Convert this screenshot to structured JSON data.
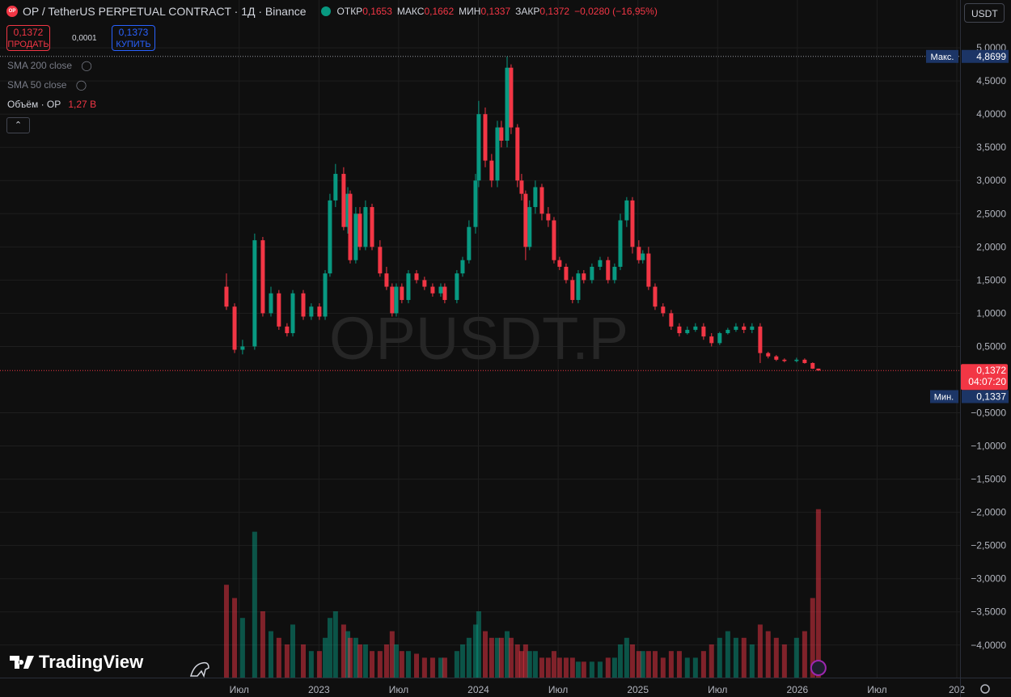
{
  "ui": {
    "symbol": "OP / TetherUS PERPETUAL CONTRACT · 1Д · Binance",
    "logo_text": "OP",
    "ohlc": [
      {
        "label": "ОТКР",
        "value": "0,1653"
      },
      {
        "label": "МАКС",
        "value": "0,1662"
      },
      {
        "label": "МИН",
        "value": "0,1337"
      },
      {
        "label": "ЗАКР",
        "value": "0,1372"
      }
    ],
    "change": "−0,0280 (−16,95%)",
    "sell": {
      "price": "0,1372",
      "label": "ПРОДАТЬ"
    },
    "spread": "0,0001",
    "buy": {
      "price": "0,1373",
      "label": "КУПИТЬ"
    },
    "currency": "USDT",
    "indicators": [
      "SMA 200 close",
      "SMA 50 close"
    ],
    "brand": "TradingView"
  },
  "chart_data": {
    "type": "candlestick",
    "watermark": "OPUSDT.P",
    "colors": {
      "up": "#089981",
      "down": "#f23645"
    },
    "grid": true,
    "x": [
      2022.42,
      2022.471,
      2022.521,
      2022.597,
      2022.648,
      2022.699,
      2022.749,
      2022.8,
      2022.836,
      2022.902,
      2022.952,
      2023.003,
      2023.039,
      2023.069,
      2023.104,
      2023.155,
      2023.181,
      2023.196,
      2023.231,
      2023.257,
      2023.292,
      2023.333,
      2023.383,
      2023.424,
      2023.459,
      2023.485,
      2023.52,
      2023.561,
      2023.612,
      2023.662,
      2023.713,
      2023.764,
      2023.789,
      2023.865,
      2023.901,
      2023.941,
      2023.982,
      2024.002,
      2024.043,
      2024.083,
      2024.119,
      2024.144,
      2024.18,
      2024.205,
      2024.245,
      2024.271,
      2024.296,
      2024.321,
      2024.357,
      2024.398,
      2024.438,
      2024.474,
      2024.509,
      2024.55,
      2024.59,
      2024.626,
      2024.661,
      2024.712,
      2024.763,
      2024.813,
      2024.854,
      2024.89,
      2024.93,
      2024.966,
      2025.006,
      2025.031,
      2025.067,
      2025.108,
      2025.158,
      2025.209,
      2025.26,
      2025.31,
      2025.361,
      2025.412,
      2025.462,
      2025.513,
      2025.564,
      2025.615,
      2025.665,
      2025.716,
      2025.767,
      2025.817,
      2025.868,
      2025.919,
      2025.995,
      2026.046,
      2026.096,
      2026.132
    ],
    "open": [
      1.4,
      1.1,
      0.45,
      0.5,
      2.1,
      1.0,
      1.3,
      0.8,
      0.7,
      1.3,
      0.95,
      1.1,
      0.95,
      1.6,
      2.7,
      3.1,
      2.3,
      2.8,
      1.8,
      2.5,
      2.0,
      2.6,
      2.0,
      1.6,
      1.4,
      1.0,
      1.4,
      1.2,
      1.6,
      1.5,
      1.4,
      1.3,
      1.4,
      1.2,
      1.6,
      1.8,
      2.3,
      3.0,
      4.0,
      3.3,
      3.0,
      3.8,
      3.6,
      4.7,
      3.8,
      3.0,
      2.8,
      2.0,
      2.6,
      2.9,
      2.5,
      2.4,
      1.8,
      1.7,
      1.5,
      1.2,
      1.6,
      1.5,
      1.7,
      1.8,
      1.5,
      1.7,
      2.4,
      2.7,
      2.0,
      1.8,
      1.9,
      1.4,
      1.1,
      1.0,
      0.8,
      0.7,
      0.75,
      0.8,
      0.65,
      0.55,
      0.7,
      0.75,
      0.8,
      0.75,
      0.8,
      0.4,
      0.35,
      0.3,
      0.28,
      0.3,
      0.25,
      0.1653
    ],
    "high": [
      1.6,
      1.15,
      0.6,
      2.2,
      2.15,
      1.4,
      1.35,
      0.85,
      1.35,
      1.35,
      1.15,
      1.15,
      1.65,
      2.8,
      3.25,
      3.2,
      2.9,
      2.85,
      2.6,
      2.6,
      2.7,
      2.65,
      2.1,
      1.7,
      1.45,
      1.45,
      1.45,
      1.65,
      1.65,
      1.55,
      1.45,
      1.45,
      1.45,
      1.65,
      1.85,
      2.4,
      3.1,
      4.2,
      4.1,
      3.4,
      3.9,
      3.9,
      4.8699,
      4.75,
      3.85,
      3.1,
      2.85,
      2.7,
      3.0,
      2.95,
      2.6,
      2.45,
      1.85,
      1.75,
      1.55,
      1.65,
      1.65,
      1.75,
      1.85,
      1.85,
      1.75,
      2.5,
      2.75,
      2.75,
      2.1,
      1.95,
      2.0,
      1.45,
      1.15,
      1.05,
      0.85,
      0.8,
      0.85,
      0.85,
      0.7,
      0.72,
      0.78,
      0.85,
      0.85,
      0.85,
      0.85,
      0.42,
      0.37,
      0.32,
      0.33,
      0.32,
      0.26,
      0.1662
    ],
    "low": [
      1.05,
      0.4,
      0.38,
      0.45,
      0.95,
      0.95,
      0.75,
      0.65,
      0.65,
      0.9,
      0.9,
      0.9,
      0.9,
      1.55,
      2.6,
      2.25,
      2.2,
      1.75,
      1.75,
      1.95,
      1.95,
      1.95,
      1.55,
      1.35,
      0.95,
      0.95,
      1.15,
      1.15,
      1.45,
      1.35,
      1.25,
      1.25,
      1.15,
      1.15,
      1.55,
      1.75,
      2.2,
      2.9,
      3.2,
      2.9,
      2.9,
      3.5,
      3.5,
      3.7,
      2.9,
      2.7,
      1.8,
      1.95,
      2.5,
      2.4,
      2.3,
      1.75,
      1.65,
      1.45,
      1.15,
      1.15,
      1.45,
      1.45,
      1.65,
      1.45,
      1.45,
      1.65,
      2.3,
      1.9,
      1.75,
      1.75,
      1.35,
      1.05,
      0.95,
      0.75,
      0.65,
      0.68,
      0.72,
      0.6,
      0.5,
      0.52,
      0.68,
      0.72,
      0.7,
      0.7,
      0.25,
      0.32,
      0.28,
      0.26,
      0.26,
      0.24,
      0.16,
      0.1337
    ],
    "close": [
      1.1,
      0.45,
      0.5,
      2.1,
      1.0,
      1.3,
      0.8,
      0.7,
      1.3,
      0.95,
      1.1,
      0.95,
      1.6,
      2.7,
      3.1,
      2.3,
      2.8,
      1.8,
      2.5,
      2.0,
      2.6,
      2.0,
      1.6,
      1.4,
      1.0,
      1.4,
      1.2,
      1.6,
      1.5,
      1.4,
      1.3,
      1.4,
      1.2,
      1.6,
      1.8,
      2.3,
      3.0,
      4.0,
      3.3,
      3.0,
      3.8,
      3.6,
      4.7,
      3.8,
      3.0,
      2.8,
      2.0,
      2.6,
      2.9,
      2.5,
      2.4,
      1.8,
      1.7,
      1.5,
      1.2,
      1.6,
      1.5,
      1.7,
      1.8,
      1.5,
      1.7,
      2.4,
      2.7,
      2.0,
      1.8,
      1.9,
      1.4,
      1.1,
      1.0,
      0.8,
      0.7,
      0.75,
      0.8,
      0.65,
      0.55,
      0.7,
      0.75,
      0.8,
      0.75,
      0.8,
      0.4,
      0.35,
      0.3,
      0.28,
      0.3,
      0.25,
      0.1653,
      0.1372
    ],
    "volume": {
      "name": "Объём · OP",
      "current_label": "1,27 B",
      "values": [
        0.7,
        0.6,
        0.45,
        1.1,
        0.5,
        0.35,
        0.3,
        0.25,
        0.4,
        0.25,
        0.2,
        0.2,
        0.3,
        0.45,
        0.5,
        0.4,
        0.35,
        0.3,
        0.3,
        0.25,
        0.25,
        0.2,
        0.2,
        0.25,
        0.35,
        0.25,
        0.2,
        0.2,
        0.18,
        0.15,
        0.15,
        0.15,
        0.15,
        0.2,
        0.25,
        0.3,
        0.4,
        0.5,
        0.35,
        0.3,
        0.3,
        0.3,
        0.35,
        0.3,
        0.25,
        0.2,
        0.25,
        0.2,
        0.2,
        0.15,
        0.15,
        0.2,
        0.15,
        0.15,
        0.15,
        0.12,
        0.12,
        0.12,
        0.12,
        0.15,
        0.15,
        0.25,
        0.3,
        0.25,
        0.2,
        0.2,
        0.2,
        0.2,
        0.15,
        0.2,
        0.2,
        0.15,
        0.15,
        0.2,
        0.25,
        0.3,
        0.35,
        0.3,
        0.3,
        0.25,
        0.4,
        0.35,
        0.3,
        0.25,
        0.3,
        0.35,
        0.6,
        1.27
      ]
    },
    "price_marks": {
      "max": {
        "tag": "Макс.",
        "value": 4.8699,
        "label": "4,8699"
      },
      "last": {
        "value": 0.1372,
        "label": "0,1372",
        "countdown": "04:07:20"
      },
      "min": {
        "tag": "Мин.",
        "value": 0.1337,
        "label": "0,1337"
      }
    },
    "xlim": [
      2021,
      2027
    ],
    "xticks": [
      {
        "value": 2022.5,
        "label": "Июл"
      },
      2023,
      {
        "value": 2023.5,
        "label": "Июл"
      },
      2024,
      {
        "value": 2024.5,
        "label": "Июл"
      },
      2025,
      {
        "value": 2025.5,
        "label": "Июл"
      },
      2026,
      {
        "value": 2026.5,
        "label": "Июл"
      },
      {
        "value": 2027,
        "label": "202"
      }
    ],
    "ylim": [
      -4.49,
      5.72
    ],
    "yticks": [
      {
        "value": 5,
        "label": "5,0000"
      },
      {
        "value": 4.5,
        "label": "4,5000"
      },
      {
        "value": 4,
        "label": "4,0000"
      },
      {
        "value": 3.5,
        "label": "3,5000"
      },
      {
        "value": 3,
        "label": "3,0000"
      },
      {
        "value": 2.5,
        "label": "2,5000"
      },
      {
        "value": 2,
        "label": "2,0000"
      },
      {
        "value": 1.5,
        "label": "1,5000"
      },
      {
        "value": 1,
        "label": "1,0000"
      },
      {
        "value": 0.5,
        "label": "0,5000"
      },
      {
        "value": -0.5,
        "label": "−0,5000"
      },
      {
        "value": -1,
        "label": "−1,0000"
      },
      {
        "value": -1.5,
        "label": "−1,5000"
      },
      {
        "value": -2,
        "label": "−2,0000"
      },
      {
        "value": -2.5,
        "label": "−2,5000"
      },
      {
        "value": -3,
        "label": "−3,0000"
      },
      {
        "value": -3.5,
        "label": "−3,5000"
      },
      {
        "value": -4,
        "label": "−4,0000"
      }
    ]
  }
}
